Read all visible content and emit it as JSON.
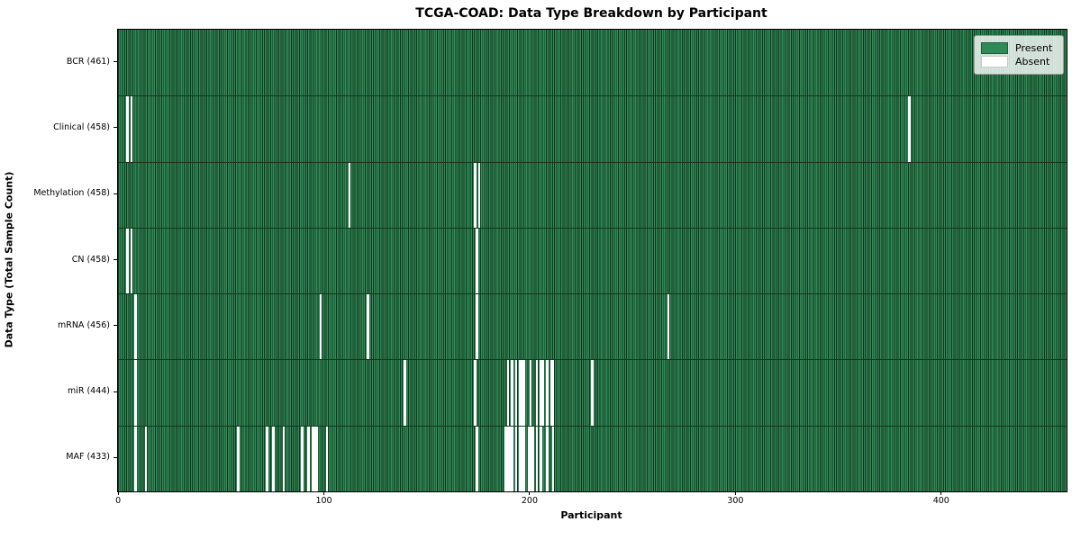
{
  "title": "TCGA-COAD: Data Type Breakdown by Participant",
  "xlabel": "Participant",
  "ylabel": "Data Type (Total Sample Count)",
  "legend": {
    "present_label": "Present",
    "absent_label": "Absent",
    "position": "upper right"
  },
  "colors": {
    "present": "#2e8b57",
    "bar_edge": "#16341f",
    "absent": "#ffffff",
    "row_separator": "#16341f"
  },
  "chart_data": {
    "type": "heatmap",
    "title": "TCGA-COAD: Data Type Breakdown by Participant",
    "xlabel": "Participant",
    "ylabel": "Data Type (Total Sample Count)",
    "grid": false,
    "legend_entries": [
      "Present",
      "Absent"
    ],
    "total_participants": 461,
    "xlim": [
      -0.5,
      460.5
    ],
    "x_ticks": [
      0,
      100,
      200,
      300,
      400
    ],
    "rows": [
      {
        "label": "BCR (461)",
        "data_type": "BCR",
        "present_count": 461,
        "absent_participants": []
      },
      {
        "label": "Clinical (458)",
        "data_type": "Clinical",
        "present_count": 458,
        "absent_participants": [
          4,
          6,
          384
        ]
      },
      {
        "label": "Methylation (458)",
        "data_type": "Methylation",
        "present_count": 458,
        "absent_participants": [
          112,
          173,
          175
        ]
      },
      {
        "label": "CN (458)",
        "data_type": "CN",
        "present_count": 458,
        "absent_participants": [
          4,
          6,
          174
        ]
      },
      {
        "label": "mRNA (456)",
        "data_type": "mRNA",
        "present_count": 456,
        "absent_participants": [
          8,
          98,
          121,
          174,
          267
        ]
      },
      {
        "label": "miR (444)",
        "data_type": "miR",
        "present_count": 444,
        "absent_participants": [
          8,
          139,
          173,
          189,
          191,
          193,
          195,
          196,
          197,
          200,
          203,
          205,
          206,
          208,
          210,
          211,
          230
        ]
      },
      {
        "label": "MAF (433)",
        "data_type": "MAF",
        "present_count": 433,
        "absent_participants": [
          8,
          13,
          58,
          72,
          75,
          80,
          89,
          92,
          94,
          95,
          96,
          101,
          174,
          188,
          189,
          190,
          191,
          193,
          195,
          196,
          197,
          199,
          200,
          201,
          203,
          205,
          208,
          211
        ]
      }
    ]
  }
}
